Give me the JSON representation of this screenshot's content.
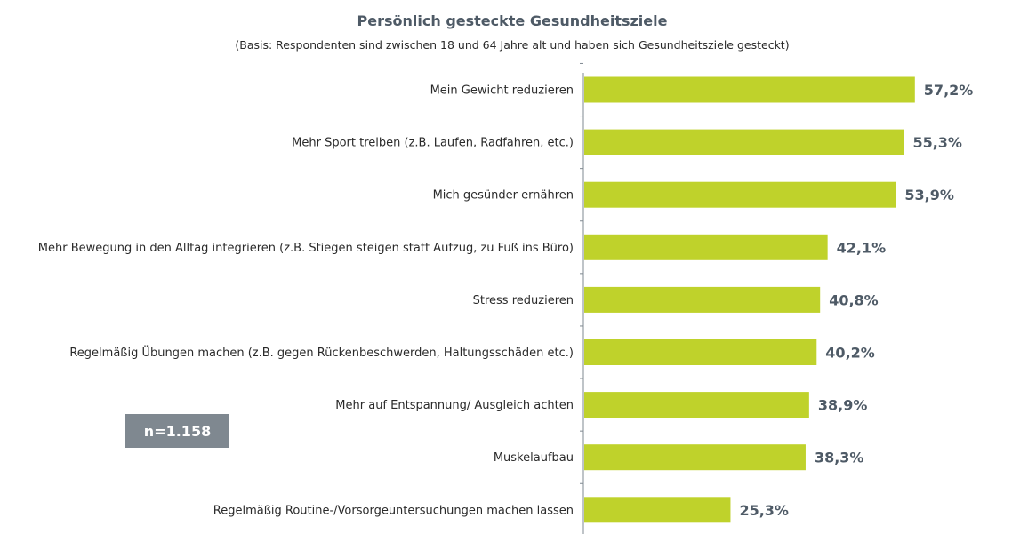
{
  "chart_data": {
    "type": "bar",
    "orientation": "horizontal",
    "title": "Persönlich gesteckte Gesundheitsziele",
    "subtitle": "(Basis: Respondenten sind zwischen 18 und 64 Jahre alt und haben sich Gesundheitsziele gesteckt)",
    "categories": [
      "Mein Gewicht reduzieren",
      "Mehr Sport treiben (z.B. Laufen, Radfahren, etc.)",
      "Mich gesünder ernähren",
      "Mehr Bewegung in den Alltag integrieren (z.B. Stiegen steigen statt Aufzug, zu Fuß ins Büro)",
      "Stress reduzieren",
      "Regelmäßig Übungen machen (z.B. gegen Rückenbeschwerden, Haltungsschäden etc.)",
      "Mehr auf Entspannung/ Ausgleich achten",
      "Muskelaufbau",
      "Regelmäßig Routine-/Vorsorgeuntersuchungen machen lassen"
    ],
    "values": [
      57.2,
      55.3,
      53.9,
      42.1,
      40.8,
      40.2,
      38.9,
      38.3,
      25.3
    ],
    "value_labels": [
      "57,2%",
      "55,3%",
      "53,9%",
      "42,1%",
      "40,8%",
      "40,2%",
      "38,9%",
      "38,3%",
      "25,3%"
    ],
    "xlim": [
      0,
      100
    ],
    "grid": false,
    "legend": "none"
  },
  "badge": {
    "label": "n=1.158"
  },
  "colors": {
    "bar": "#bfd22b",
    "value_label": "#4e5a66",
    "axis": "#7f8890",
    "badge": "#7f8890",
    "category_label": "#2a2a2a"
  }
}
